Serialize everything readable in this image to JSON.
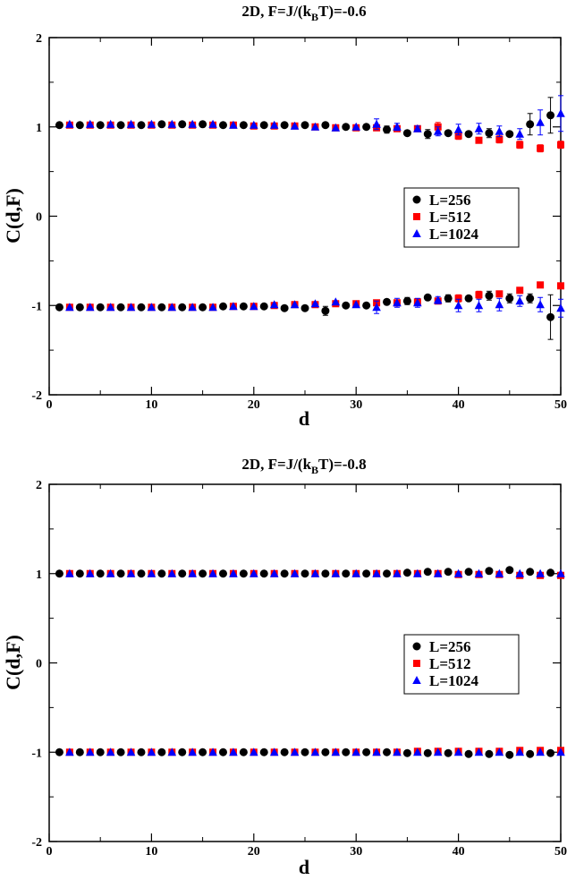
{
  "chart_data": [
    {
      "type": "scatter",
      "title": "2D, F=J/(k",
      "title_sub": "B",
      "title_end": "T)=-0.6",
      "xlabel": "d",
      "ylabel": "C(d,F)",
      "xlim": [
        0,
        50
      ],
      "ylim": [
        -2,
        2
      ],
      "xticks": [
        "0",
        "10",
        "20",
        "30",
        "40",
        "50"
      ],
      "yticks": [
        "-2",
        "-1",
        "0",
        "1",
        "2"
      ],
      "legend_position": "center-right",
      "series": [
        {
          "name": "L=256",
          "marker": "circle",
          "color": "#000000",
          "upper": {
            "x": [
              1,
              3,
              5,
              7,
              9,
              11,
              13,
              15,
              17,
              19,
              21,
              23,
              25,
              27,
              29,
              31,
              33,
              35,
              37,
              39,
              41,
              43,
              45,
              47,
              49
            ],
            "y": [
              1.02,
              1.02,
              1.02,
              1.02,
              1.02,
              1.03,
              1.03,
              1.03,
              1.02,
              1.02,
              1.02,
              1.02,
              1.02,
              1.02,
              1.0,
              1.0,
              0.97,
              0.93,
              0.92,
              0.93,
              0.92,
              0.93,
              0.92,
              1.03,
              1.13
            ],
            "err": [
              0,
              0,
              0,
              0,
              0,
              0,
              0,
              0,
              0,
              0,
              0,
              0,
              0,
              0,
              0,
              0,
              0.04,
              0,
              0.05,
              0,
              0,
              0.05,
              0,
              0.12,
              0.2
            ]
          },
          "lower": {
            "x": [
              1,
              3,
              5,
              7,
              9,
              11,
              13,
              15,
              17,
              19,
              21,
              23,
              25,
              27,
              29,
              31,
              33,
              35,
              37,
              39,
              41,
              43,
              45,
              47,
              49
            ],
            "y": [
              -1.02,
              -1.02,
              -1.02,
              -1.02,
              -1.02,
              -1.02,
              -1.02,
              -1.02,
              -1.01,
              -1.01,
              -1.01,
              -1.03,
              -1.03,
              -1.06,
              -1.0,
              -1.0,
              -0.96,
              -0.95,
              -0.91,
              -0.92,
              -0.92,
              -0.89,
              -0.92,
              -0.92,
              -1.13
            ],
            "err": [
              0,
              0,
              0,
              0,
              0,
              0,
              0,
              0,
              0,
              0,
              0,
              0,
              0,
              0.05,
              0,
              0,
              0,
              0.04,
              0,
              0.04,
              0,
              0.05,
              0.05,
              0.05,
              0.25
            ]
          }
        },
        {
          "name": "L=512",
          "marker": "square",
          "color": "#ff0000",
          "upper": {
            "x": [
              2,
              4,
              6,
              8,
              10,
              12,
              14,
              16,
              18,
              20,
              22,
              24,
              26,
              28,
              30,
              32,
              34,
              36,
              38,
              40,
              42,
              44,
              46,
              48,
              50
            ],
            "y": [
              1.02,
              1.02,
              1.02,
              1.02,
              1.02,
              1.02,
              1.02,
              1.02,
              1.02,
              1.01,
              1.01,
              1.01,
              1.0,
              0.99,
              0.99,
              0.99,
              0.98,
              0.98,
              1.0,
              0.9,
              0.85,
              0.86,
              0.8,
              0.76,
              0.8
            ],
            "err": [
              0,
              0,
              0,
              0,
              0,
              0,
              0,
              0,
              0,
              0,
              0,
              0,
              0,
              0,
              0,
              0,
              0,
              0.03,
              0.05,
              0.04,
              0.03,
              0.04,
              0.04,
              0.04,
              0.04
            ]
          },
          "lower": {
            "x": [
              2,
              4,
              6,
              8,
              10,
              12,
              14,
              16,
              18,
              20,
              22,
              24,
              26,
              28,
              30,
              32,
              34,
              36,
              38,
              40,
              42,
              44,
              46,
              48,
              50
            ],
            "y": [
              -1.02,
              -1.02,
              -1.02,
              -1.02,
              -1.02,
              -1.02,
              -1.02,
              -1.02,
              -1.01,
              -1.01,
              -1.0,
              -0.99,
              -0.99,
              -0.98,
              -0.98,
              -0.97,
              -0.97,
              -0.96,
              -0.95,
              -0.92,
              -0.88,
              -0.87,
              -0.83,
              -0.77,
              -0.78
            ],
            "err": [
              0,
              0,
              0,
              0,
              0,
              0,
              0,
              0,
              0,
              0,
              0,
              0,
              0,
              0,
              0,
              0,
              0,
              0,
              0,
              0.04,
              0.04,
              0.03,
              0.03,
              0.03,
              0.03
            ]
          }
        },
        {
          "name": "L=1024",
          "marker": "triangle",
          "color": "#0000ff",
          "upper": {
            "x": [
              2,
              4,
              6,
              8,
              10,
              12,
              14,
              16,
              18,
              20,
              22,
              24,
              26,
              28,
              30,
              32,
              34,
              36,
              38,
              40,
              42,
              44,
              46,
              48,
              50
            ],
            "y": [
              1.03,
              1.03,
              1.03,
              1.03,
              1.03,
              1.03,
              1.03,
              1.03,
              1.02,
              1.02,
              1.02,
              1.01,
              1.0,
              0.99,
              1.0,
              1.03,
              1.0,
              0.98,
              0.95,
              0.97,
              0.98,
              0.95,
              0.92,
              1.05,
              1.15
            ],
            "err": [
              0,
              0,
              0,
              0,
              0,
              0,
              0,
              0,
              0,
              0,
              0,
              0,
              0,
              0,
              0,
              0.06,
              0.04,
              0.03,
              0.05,
              0.06,
              0.06,
              0.06,
              0.06,
              0.14,
              0.2
            ]
          },
          "lower": {
            "x": [
              2,
              4,
              6,
              8,
              10,
              12,
              14,
              16,
              18,
              20,
              22,
              24,
              26,
              28,
              30,
              32,
              34,
              36,
              38,
              40,
              42,
              44,
              46,
              48,
              50
            ],
            "y": [
              -1.02,
              -1.02,
              -1.02,
              -1.02,
              -1.02,
              -1.02,
              -1.02,
              -1.02,
              -1.01,
              -1.01,
              -0.99,
              -0.99,
              -0.98,
              -0.96,
              -0.99,
              -1.02,
              -0.97,
              -0.97,
              -0.94,
              -1.0,
              -1.0,
              -0.99,
              -0.95,
              -0.99,
              -1.03
            ],
            "err": [
              0,
              0,
              0,
              0,
              0,
              0,
              0,
              0,
              0,
              0,
              0,
              0,
              0,
              0,
              0,
              0.07,
              0.05,
              0.05,
              0.04,
              0.07,
              0.07,
              0.07,
              0.06,
              0.08,
              0.1
            ]
          }
        }
      ]
    },
    {
      "type": "scatter",
      "title": "2D, F=J/(k",
      "title_sub": "B",
      "title_end": "T)=-0.8",
      "xlabel": "d",
      "ylabel": "C(d,F)",
      "xlim": [
        0,
        50
      ],
      "ylim": [
        -2,
        2
      ],
      "xticks": [
        "0",
        "10",
        "20",
        "30",
        "40",
        "50"
      ],
      "yticks": [
        "-2",
        "-1",
        "0",
        "1",
        "2"
      ],
      "legend_position": "center-right",
      "series": [
        {
          "name": "L=256",
          "marker": "circle",
          "color": "#000000",
          "upper": {
            "x": [
              1,
              3,
              5,
              7,
              9,
              11,
              13,
              15,
              17,
              19,
              21,
              23,
              25,
              27,
              29,
              31,
              33,
              35,
              37,
              39,
              41,
              43,
              45,
              47,
              49
            ],
            "y": [
              1.0,
              1.0,
              1.0,
              1.0,
              1.0,
              1.0,
              1.0,
              1.0,
              1.0,
              1.0,
              1.0,
              1.0,
              1.0,
              1.0,
              1.0,
              1.0,
              1.0,
              1.01,
              1.02,
              1.02,
              1.02,
              1.03,
              1.04,
              1.02,
              1.01
            ],
            "err": [
              0,
              0,
              0,
              0,
              0,
              0,
              0,
              0,
              0,
              0,
              0,
              0,
              0,
              0,
              0,
              0,
              0,
              0,
              0,
              0,
              0,
              0,
              0,
              0,
              0
            ]
          },
          "lower": {
            "x": [
              1,
              3,
              5,
              7,
              9,
              11,
              13,
              15,
              17,
              19,
              21,
              23,
              25,
              27,
              29,
              31,
              33,
              35,
              37,
              39,
              41,
              43,
              45,
              47,
              49
            ],
            "y": [
              -1.0,
              -1.0,
              -1.0,
              -1.0,
              -1.0,
              -1.0,
              -1.0,
              -1.0,
              -1.0,
              -1.0,
              -1.0,
              -1.0,
              -1.0,
              -1.0,
              -1.0,
              -1.0,
              -1.0,
              -1.01,
              -1.01,
              -1.01,
              -1.02,
              -1.02,
              -1.03,
              -1.02,
              -1.01
            ],
            "err": [
              0,
              0,
              0,
              0,
              0,
              0,
              0,
              0,
              0,
              0,
              0,
              0,
              0,
              0,
              0,
              0,
              0,
              0,
              0,
              0,
              0,
              0,
              0,
              0,
              0
            ]
          }
        },
        {
          "name": "L=512",
          "marker": "square",
          "color": "#ff0000",
          "upper": {
            "x": [
              2,
              4,
              6,
              8,
              10,
              12,
              14,
              16,
              18,
              20,
              22,
              24,
              26,
              28,
              30,
              32,
              34,
              36,
              38,
              40,
              42,
              44,
              46,
              48,
              50
            ],
            "y": [
              1.0,
              1.0,
              1.0,
              1.0,
              1.0,
              1.0,
              1.0,
              1.0,
              1.0,
              1.0,
              1.0,
              1.0,
              1.0,
              1.0,
              1.0,
              1.0,
              1.0,
              1.0,
              1.0,
              0.99,
              0.99,
              0.99,
              0.98,
              0.98,
              0.98
            ],
            "err": [
              0,
              0,
              0,
              0,
              0,
              0,
              0,
              0,
              0,
              0,
              0,
              0,
              0,
              0,
              0,
              0,
              0,
              0,
              0,
              0,
              0,
              0,
              0,
              0,
              0
            ]
          },
          "lower": {
            "x": [
              2,
              4,
              6,
              8,
              10,
              12,
              14,
              16,
              18,
              20,
              22,
              24,
              26,
              28,
              30,
              32,
              34,
              36,
              38,
              40,
              42,
              44,
              46,
              48,
              50
            ],
            "y": [
              -1.0,
              -1.0,
              -1.0,
              -1.0,
              -1.0,
              -1.0,
              -1.0,
              -1.0,
              -1.0,
              -1.0,
              -1.0,
              -1.0,
              -1.0,
              -1.0,
              -1.0,
              -1.0,
              -1.0,
              -0.99,
              -0.99,
              -0.99,
              -0.99,
              -0.99,
              -0.98,
              -0.98,
              -0.98
            ],
            "err": [
              0,
              0,
              0,
              0,
              0,
              0,
              0,
              0,
              0,
              0,
              0,
              0,
              0,
              0,
              0,
              0,
              0,
              0,
              0,
              0,
              0,
              0,
              0,
              0,
              0
            ]
          }
        },
        {
          "name": "L=1024",
          "marker": "triangle",
          "color": "#0000ff",
          "upper": {
            "x": [
              2,
              4,
              6,
              8,
              10,
              12,
              14,
              16,
              18,
              20,
              22,
              24,
              26,
              28,
              30,
              32,
              34,
              36,
              38,
              40,
              42,
              44,
              46,
              48,
              50
            ],
            "y": [
              1.0,
              1.0,
              1.0,
              1.0,
              1.0,
              1.0,
              1.0,
              1.0,
              1.0,
              1.0,
              1.0,
              1.0,
              1.0,
              1.0,
              1.0,
              1.0,
              1.0,
              1.0,
              1.0,
              1.0,
              1.0,
              1.0,
              1.0,
              1.0,
              1.0
            ],
            "err": [
              0,
              0,
              0,
              0,
              0,
              0,
              0,
              0,
              0,
              0,
              0,
              0,
              0,
              0,
              0,
              0,
              0,
              0,
              0,
              0,
              0,
              0,
              0,
              0,
              0
            ]
          },
          "lower": {
            "x": [
              2,
              4,
              6,
              8,
              10,
              12,
              14,
              16,
              18,
              20,
              22,
              24,
              26,
              28,
              30,
              32,
              34,
              36,
              38,
              40,
              42,
              44,
              46,
              48,
              50
            ],
            "y": [
              -1.0,
              -1.0,
              -1.0,
              -1.0,
              -1.0,
              -1.0,
              -1.0,
              -1.0,
              -1.0,
              -1.0,
              -1.0,
              -1.0,
              -1.0,
              -1.0,
              -1.0,
              -1.0,
              -1.0,
              -1.0,
              -1.0,
              -1.0,
              -1.0,
              -1.0,
              -1.0,
              -1.0,
              -1.0
            ],
            "err": [
              0,
              0,
              0,
              0,
              0,
              0,
              0,
              0,
              0,
              0,
              0,
              0,
              0,
              0,
              0,
              0,
              0,
              0,
              0,
              0,
              0,
              0,
              0,
              0,
              0
            ]
          }
        }
      ]
    }
  ]
}
